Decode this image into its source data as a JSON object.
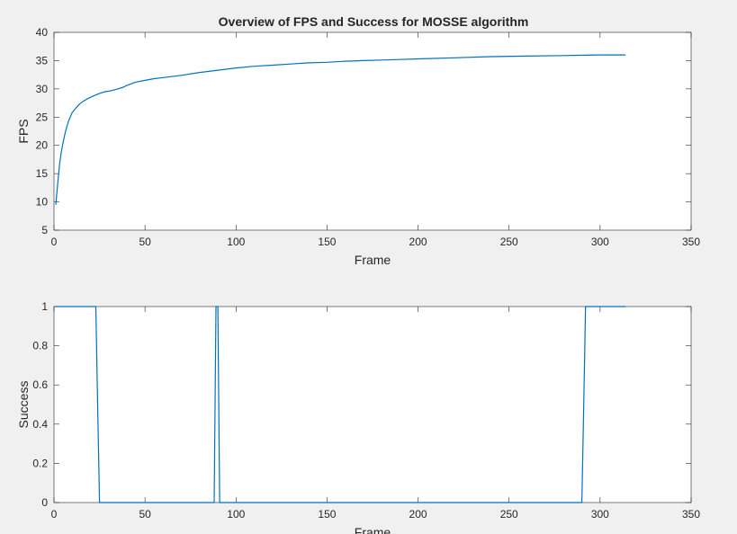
{
  "figure": {
    "title": "Overview of FPS and Success for MOSSE algorithm"
  },
  "chart_data": [
    {
      "type": "line",
      "title": "Overview of FPS and Success for MOSSE algorithm",
      "xlabel": "Frame",
      "ylabel": "FPS",
      "xlim": [
        0,
        350
      ],
      "ylim": [
        5,
        40
      ],
      "xticks": [
        0,
        50,
        100,
        150,
        200,
        250,
        300,
        350
      ],
      "yticks": [
        5,
        10,
        15,
        20,
        25,
        30,
        35,
        40
      ],
      "xtick_labels": [
        "0",
        "50",
        "100",
        "150",
        "200",
        "250",
        "300",
        "350"
      ],
      "ytick_labels": [
        "5",
        "10",
        "15",
        "20",
        "25",
        "30",
        "35",
        "40"
      ],
      "grid": false,
      "line_color": "#0072bd",
      "series": [
        {
          "x": [
            1,
            2,
            3,
            4,
            5,
            6,
            7,
            8,
            9,
            10,
            12,
            14,
            16,
            18,
            20,
            22,
            25,
            28,
            30,
            33,
            35,
            38,
            40,
            45,
            50,
            55,
            60,
            70,
            80,
            90,
            100,
            110,
            120,
            130,
            140,
            150,
            160,
            170,
            180,
            190,
            200,
            220,
            240,
            260,
            280,
            300,
            314
          ],
          "y": [
            9.5,
            13,
            16.5,
            18.8,
            20.5,
            22,
            23.3,
            24.3,
            25.1,
            25.8,
            26.6,
            27.3,
            27.8,
            28.2,
            28.5,
            28.8,
            29.2,
            29.5,
            29.6,
            29.8,
            30.0,
            30.3,
            30.6,
            31.2,
            31.5,
            31.8,
            32.0,
            32.4,
            32.9,
            33.3,
            33.7,
            34.0,
            34.2,
            34.4,
            34.6,
            34.7,
            34.9,
            35.0,
            35.1,
            35.2,
            35.3,
            35.5,
            35.7,
            35.8,
            35.9,
            36.0,
            36.0
          ]
        }
      ]
    },
    {
      "type": "line",
      "xlabel": "Frame",
      "ylabel": "Success",
      "xlim": [
        0,
        350
      ],
      "ylim": [
        0,
        1
      ],
      "xticks": [
        0,
        50,
        100,
        150,
        200,
        250,
        300,
        350
      ],
      "yticks": [
        0,
        0.2,
        0.4,
        0.6,
        0.8,
        1
      ],
      "xtick_labels": [
        "0",
        "50",
        "100",
        "150",
        "200",
        "250",
        "300",
        "350"
      ],
      "ytick_labels": [
        "0",
        "0.2",
        "0.4",
        "0.6",
        "0.8",
        "1"
      ],
      "grid": false,
      "line_color": "#0072bd",
      "series": [
        {
          "x": [
            1,
            23,
            24,
            25,
            87,
            88,
            89,
            90,
            91,
            92,
            290,
            291,
            292,
            314
          ],
          "y": [
            1,
            1,
            0.5,
            0,
            0,
            0,
            1,
            1,
            0,
            0,
            0,
            0.5,
            1,
            1
          ]
        }
      ]
    }
  ]
}
